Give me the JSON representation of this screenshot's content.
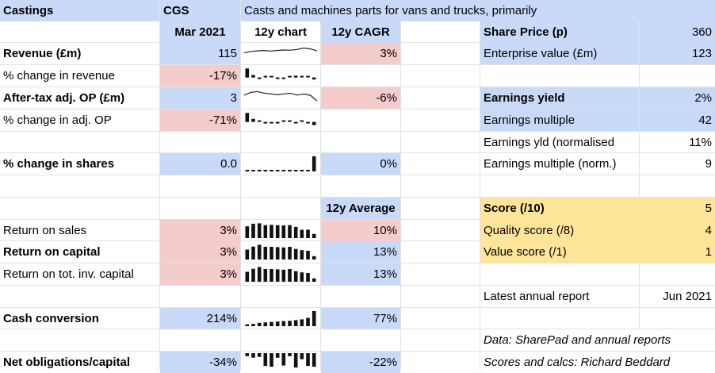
{
  "header": {
    "company": "Castings",
    "ticker": "CGS",
    "description": "Casts and machines parts for vans and trucks, primarily"
  },
  "columns": {
    "period": "Mar 2021",
    "chart": "12y chart",
    "cagr": "12y CAGR",
    "average": "12y Average"
  },
  "left_rows": {
    "revenue": {
      "label": "Revenue (£m)",
      "value": "115",
      "stat": "3%"
    },
    "revenue_change": {
      "label": "% change in revenue",
      "value": "-17%"
    },
    "op": {
      "label": "After-tax adj. OP (£m)",
      "value": "3",
      "stat": "-6%"
    },
    "op_change": {
      "label": "% change in adj. OP",
      "value": "-71%"
    },
    "shares_change": {
      "label": "% change in shares",
      "value": "0.0",
      "stat": "0%"
    },
    "ros": {
      "label": "Return on sales",
      "value": "3%",
      "stat": "10%"
    },
    "roc": {
      "label": "Return on capital",
      "value": "3%",
      "stat": "13%"
    },
    "rotic": {
      "label": "Return on tot. inv. capital",
      "value": "3%",
      "stat": "13%"
    },
    "cash_conv": {
      "label": "Cash conversion",
      "value": "214%",
      "stat": "77%"
    },
    "net_obl": {
      "label": "Net obligations/capital",
      "value": "-34%",
      "stat": "-22%"
    }
  },
  "right_rows": {
    "share_price": {
      "label": "Share Price (p)",
      "value": "360"
    },
    "ev": {
      "label": "Enterprise value (£m)",
      "value": "123"
    },
    "ey": {
      "label": "Earnings yield",
      "value": "2%"
    },
    "em": {
      "label": "Earnings multiple",
      "value": "42"
    },
    "ey_norm": {
      "label": "Earnings yld (normalised",
      "value": "11%"
    },
    "em_norm": {
      "label": "Earnings multiple (norm.)",
      "value": "9"
    },
    "score": {
      "label": "Score (/10)",
      "value": "5"
    },
    "quality": {
      "label": "Quality score (/8)",
      "value": "4"
    },
    "value_score": {
      "label": "Value score (/1)",
      "value": "1"
    },
    "report": {
      "label": "Latest annual report",
      "value": "Jun 2021"
    },
    "source": "Data: SharePad and annual reports",
    "credits": "Scores and calcs: Richard Beddard"
  },
  "colors": {
    "blue": "#c9daf8",
    "red": "#f4cccc",
    "yellow": "#ffe599",
    "grid": "#e2e2e2"
  },
  "sparklines": {
    "revenue_line": [
      0.52,
      0.62,
      0.66,
      0.69,
      0.65,
      0.69,
      0.72,
      0.71,
      0.76,
      0.86,
      0.8,
      0.66
    ],
    "revenue_change_bars": [
      0.9,
      0.25,
      -0.18,
      0.08,
      0.12,
      -0.12,
      -0.1,
      0.16,
      0.18,
      0.07,
      0.12,
      -0.35
    ],
    "op_line": [
      0.68,
      0.86,
      0.93,
      0.81,
      0.76,
      0.7,
      0.76,
      0.8,
      0.68,
      0.75,
      0.66,
      0.28
    ],
    "op_change_bars": [
      0.9,
      0.3,
      0.08,
      -0.14,
      -0.1,
      -0.1,
      0.1,
      0.06,
      -0.15,
      0.1,
      -0.08,
      -0.55
    ],
    "shares_change_bars": [
      0,
      0,
      0,
      0,
      0,
      0,
      0,
      0,
      0,
      0,
      0,
      1.0
    ],
    "ros_bars": [
      0.78,
      0.95,
      0.98,
      0.86,
      0.88,
      0.86,
      0.84,
      0.86,
      0.74,
      0.55,
      0.56,
      0.28
    ],
    "roc_bars": [
      0.66,
      0.86,
      0.98,
      0.84,
      0.84,
      0.82,
      0.8,
      0.84,
      0.7,
      0.62,
      0.58,
      0.22
    ],
    "rotic_bars": [
      0.66,
      0.86,
      0.98,
      0.84,
      0.84,
      0.82,
      0.8,
      0.84,
      0.7,
      0.62,
      0.58,
      0.22
    ],
    "cash_conv_bars": [
      0.12,
      0.15,
      0.22,
      0.25,
      0.28,
      0.31,
      0.34,
      0.36,
      0.4,
      0.45,
      0.55,
      1.0
    ],
    "net_obl_bars": [
      -0.2,
      -0.3,
      -0.25,
      -0.85,
      -0.9,
      -0.3,
      -0.82,
      -0.2,
      -0.95,
      -0.4,
      -0.85,
      -0.9
    ]
  }
}
